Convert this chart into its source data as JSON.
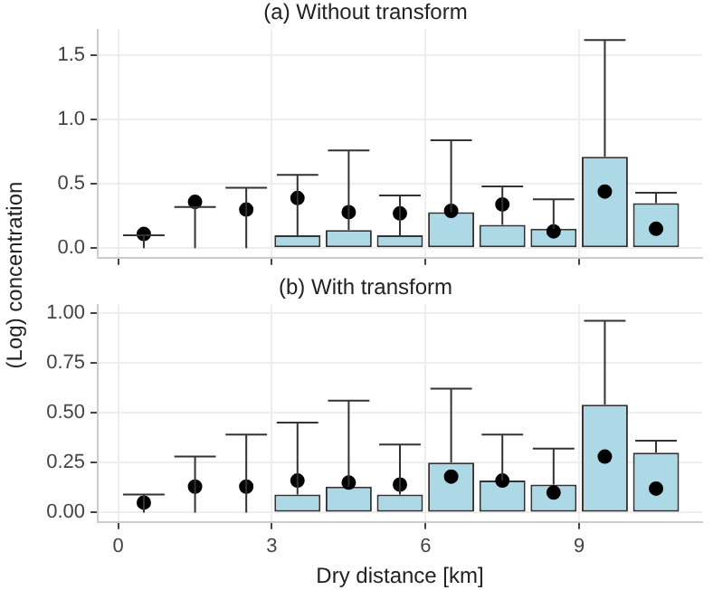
{
  "chart_data": [
    {
      "type": "bar",
      "title": "(a) Without transform",
      "ylabel": "(Log) concentration",
      "x": [
        0.5,
        1.5,
        2.5,
        3.5,
        4.5,
        5.5,
        6.5,
        7.5,
        8.5,
        9.5,
        10.5
      ],
      "xlim": [
        -0.4,
        11.4
      ],
      "xticks": [
        0,
        3,
        6,
        9
      ],
      "ylim": [
        -0.075,
        1.7
      ],
      "yticks": [
        {
          "value": 0,
          "label": "0.0"
        },
        {
          "value": 0.5,
          "label": "0.5"
        },
        {
          "value": 1,
          "label": "1.0"
        },
        {
          "value": 1.5,
          "label": "1.5"
        }
      ],
      "tick_labels": "y",
      "grid": true,
      "legend": false,
      "series": [
        {
          "type": "bar",
          "color": "#add8e6",
          "values": [
            0,
            0,
            0,
            0.1,
            0.14,
            0.1,
            0.28,
            0.18,
            0.15,
            0.71,
            0.35
          ],
          "errors": [
            [
              0,
              0.1
            ],
            [
              0,
              0.32
            ],
            [
              0,
              0.47
            ],
            [
              0.1,
              0.57
            ],
            [
              0.14,
              0.76
            ],
            [
              0.1,
              0.41
            ],
            [
              0.28,
              0.84
            ],
            [
              0.18,
              0.48
            ],
            [
              0.15,
              0.38
            ],
            [
              0.71,
              1.62
            ],
            [
              0.35,
              0.43
            ]
          ]
        },
        {
          "type": "scatter",
          "color": "#000000",
          "values": [
            0.11,
            0.36,
            0.3,
            0.39,
            0.28,
            0.27,
            0.29,
            0.34,
            0.13,
            0.44,
            0.15
          ]
        }
      ]
    },
    {
      "type": "bar",
      "title": "(b) With transform",
      "xlabel": "Dry distance [km]",
      "x": [
        0.5,
        1.5,
        2.5,
        3.5,
        4.5,
        5.5,
        6.5,
        7.5,
        8.5,
        9.5,
        10.5
      ],
      "xlim": [
        -0.4,
        11.4
      ],
      "xticks": [
        0,
        3,
        6,
        9
      ],
      "ylim": [
        -0.047,
        1.04
      ],
      "yticks": [
        {
          "value": 0,
          "label": "0.00"
        },
        {
          "value": 0.25,
          "label": "0.25"
        },
        {
          "value": 0.5,
          "label": "0.50"
        },
        {
          "value": 0.75,
          "label": "0.75"
        },
        {
          "value": 1,
          "label": "1.00"
        }
      ],
      "grid": true,
      "legend": false,
      "series": [
        {
          "type": "bar",
          "color": "#add8e6",
          "values": [
            0,
            0,
            0,
            0.09,
            0.13,
            0.09,
            0.25,
            0.16,
            0.14,
            0.54,
            0.3
          ],
          "errors": [
            [
              0,
              0.09
            ],
            [
              0,
              0.28
            ],
            [
              0,
              0.39
            ],
            [
              0.09,
              0.45
            ],
            [
              0.13,
              0.56
            ],
            [
              0.09,
              0.34
            ],
            [
              0.25,
              0.62
            ],
            [
              0.16,
              0.39
            ],
            [
              0.14,
              0.32
            ],
            [
              0.54,
              0.96
            ],
            [
              0.3,
              0.36
            ]
          ]
        },
        {
          "type": "scatter",
          "color": "#000000",
          "values": [
            0.05,
            0.13,
            0.13,
            0.16,
            0.15,
            0.14,
            0.18,
            0.16,
            0.1,
            0.28,
            0.12
          ]
        }
      ]
    }
  ]
}
